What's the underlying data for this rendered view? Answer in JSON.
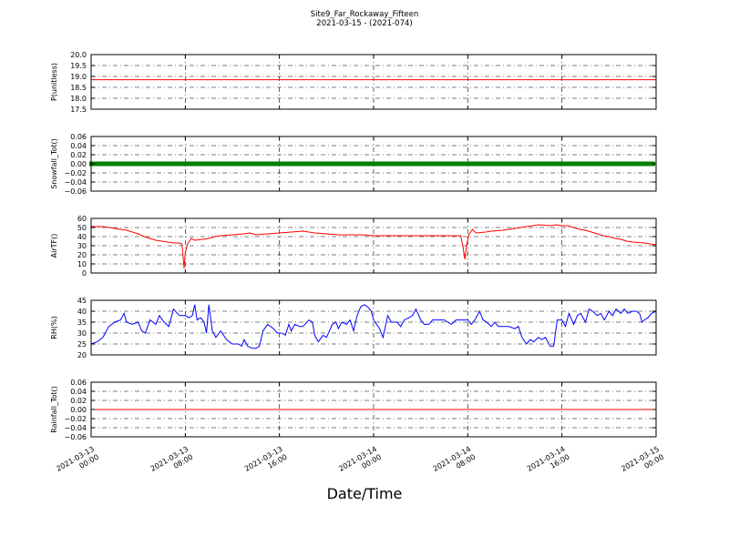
{
  "header": {
    "title": "Site9_Far_Rockaway_Fifteen",
    "subtitle": "2021-03-15 - (2021-074)"
  },
  "xlabel": "Date/Time",
  "chart_data": [
    {
      "type": "line",
      "ylabel": "P(unitless)",
      "ylim": [
        17.5,
        20.0
      ],
      "yticks": [
        "17.5",
        "18.0",
        "18.5",
        "19.0",
        "19.5",
        "20.0"
      ],
      "ytick_values": [
        17.5,
        18.0,
        18.5,
        19.0,
        19.5,
        20.0
      ],
      "color": "#ff0000",
      "marker": "none",
      "series_points": [
        [
          0,
          18.85
        ],
        [
          48,
          18.85
        ]
      ]
    },
    {
      "type": "line",
      "ylabel": "Snowfall_Tot()",
      "ylim": [
        -0.06,
        0.06
      ],
      "yticks": [
        "−0.06",
        "−0.04",
        "−0.02",
        "0.00",
        "0.02",
        "0.04",
        "0.06"
      ],
      "ytick_values": [
        -0.06,
        -0.04,
        -0.02,
        0.0,
        0.02,
        0.04,
        0.06
      ],
      "color": "#008000",
      "marker": "square",
      "series_points": [
        [
          0,
          0.0
        ],
        [
          48,
          0.0
        ]
      ]
    },
    {
      "type": "line",
      "ylabel": "AirTF()",
      "ylim": [
        0,
        60
      ],
      "yticks": [
        "0",
        "10",
        "20",
        "30",
        "40",
        "50",
        "60"
      ],
      "ytick_values": [
        0,
        10,
        20,
        30,
        40,
        50,
        60
      ],
      "color": "#ff0000",
      "marker": "none",
      "series_points": [
        [
          0,
          51
        ],
        [
          1,
          51
        ],
        [
          2,
          49
        ],
        [
          2.5,
          48
        ],
        [
          3,
          47
        ],
        [
          3.5,
          45
        ],
        [
          4,
          43
        ],
        [
          4.5,
          40
        ],
        [
          5,
          38
        ],
        [
          5.5,
          36
        ],
        [
          6,
          35
        ],
        [
          6.5,
          34
        ],
        [
          7,
          33
        ],
        [
          7.5,
          33
        ],
        [
          7.7,
          32
        ],
        [
          7.8,
          20
        ],
        [
          7.9,
          5
        ],
        [
          8.0,
          22
        ],
        [
          8.2,
          32
        ],
        [
          8.5,
          38
        ],
        [
          8.8,
          36
        ],
        [
          9.5,
          37
        ],
        [
          10,
          38
        ],
        [
          10.5,
          40
        ],
        [
          11,
          41
        ],
        [
          12,
          42
        ],
        [
          13,
          43
        ],
        [
          13.5,
          44
        ],
        [
          14,
          42
        ],
        [
          15,
          43
        ],
        [
          16,
          44
        ],
        [
          17,
          45
        ],
        [
          18,
          46
        ],
        [
          18.5,
          45
        ],
        [
          19,
          44
        ],
        [
          20,
          43
        ],
        [
          21,
          42
        ],
        [
          22,
          42
        ],
        [
          23,
          42
        ],
        [
          24,
          41
        ],
        [
          25,
          41
        ],
        [
          26,
          41
        ],
        [
          30,
          41
        ],
        [
          31.4,
          41
        ],
        [
          31.6,
          28
        ],
        [
          31.75,
          15
        ],
        [
          31.9,
          30
        ],
        [
          32.1,
          42
        ],
        [
          32.4,
          48
        ],
        [
          32.7,
          44
        ],
        [
          33.5,
          45
        ],
        [
          34,
          46
        ],
        [
          35,
          47
        ],
        [
          36,
          49
        ],
        [
          37,
          51
        ],
        [
          38,
          53
        ],
        [
          39,
          52
        ],
        [
          39.5,
          53
        ],
        [
          40,
          52
        ],
        [
          40.5,
          52
        ],
        [
          41,
          50
        ],
        [
          41.5,
          48
        ],
        [
          42,
          47
        ],
        [
          42.5,
          45
        ],
        [
          43,
          43
        ],
        [
          43.5,
          41
        ],
        [
          44,
          40
        ],
        [
          44.5,
          38
        ],
        [
          45,
          37
        ],
        [
          45.5,
          35
        ],
        [
          46,
          34
        ],
        [
          47,
          33
        ],
        [
          48,
          31
        ]
      ]
    },
    {
      "type": "line",
      "ylabel": "RH(%)",
      "ylim": [
        20,
        45
      ],
      "yticks": [
        "20",
        "25",
        "30",
        "35",
        "40",
        "45"
      ],
      "ytick_values": [
        20,
        25,
        30,
        35,
        40,
        45
      ],
      "color": "#0000ff",
      "marker": "none",
      "series_points": [
        [
          0,
          25
        ],
        [
          0.5,
          26
        ],
        [
          1,
          28
        ],
        [
          1.5,
          33
        ],
        [
          2,
          35
        ],
        [
          2.5,
          36
        ],
        [
          2.8,
          39
        ],
        [
          3,
          35
        ],
        [
          3.5,
          34
        ],
        [
          4,
          35
        ],
        [
          4.3,
          31
        ],
        [
          4.6,
          30
        ],
        [
          5,
          36
        ],
        [
          5.5,
          34
        ],
        [
          5.8,
          38
        ],
        [
          6.2,
          35
        ],
        [
          6.6,
          33
        ],
        [
          7,
          41
        ],
        [
          7.5,
          38
        ],
        [
          8,
          38
        ],
        [
          8.3,
          37
        ],
        [
          8.6,
          38
        ],
        [
          8.8,
          43
        ],
        [
          9,
          36
        ],
        [
          9.3,
          37
        ],
        [
          9.6,
          35
        ],
        [
          9.8,
          30
        ],
        [
          10,
          43
        ],
        [
          10.3,
          31
        ],
        [
          10.6,
          28
        ],
        [
          11,
          31
        ],
        [
          11.5,
          27
        ],
        [
          12,
          25
        ],
        [
          12.5,
          25
        ],
        [
          12.8,
          24
        ],
        [
          13,
          27
        ],
        [
          13.3,
          24
        ],
        [
          13.7,
          23
        ],
        [
          14,
          23
        ],
        [
          14.3,
          24
        ],
        [
          14.6,
          31
        ],
        [
          15,
          34
        ],
        [
          15.5,
          32
        ],
        [
          15.8,
          30
        ],
        [
          16.2,
          30
        ],
        [
          16.5,
          29
        ],
        [
          16.8,
          34
        ],
        [
          17,
          31
        ],
        [
          17.3,
          34
        ],
        [
          17.7,
          33
        ],
        [
          18,
          33
        ],
        [
          18.5,
          36
        ],
        [
          18.8,
          35
        ],
        [
          19,
          29
        ],
        [
          19.3,
          26
        ],
        [
          19.7,
          29
        ],
        [
          20,
          28
        ],
        [
          20.5,
          34
        ],
        [
          20.8,
          35
        ],
        [
          21,
          32
        ],
        [
          21.3,
          35
        ],
        [
          21.7,
          34
        ],
        [
          22,
          36
        ],
        [
          22.3,
          31
        ],
        [
          22.6,
          38
        ],
        [
          22.9,
          42
        ],
        [
          23.2,
          43
        ],
        [
          23.5,
          42
        ],
        [
          23.8,
          40
        ],
        [
          24,
          36
        ],
        [
          24.5,
          32
        ],
        [
          24.8,
          28
        ],
        [
          25.2,
          38
        ],
        [
          25.5,
          35
        ],
        [
          26,
          35
        ],
        [
          26.3,
          33
        ],
        [
          26.6,
          36
        ],
        [
          27,
          37
        ],
        [
          27.3,
          38
        ],
        [
          27.6,
          41
        ],
        [
          28,
          36
        ],
        [
          28.3,
          34
        ],
        [
          28.7,
          34
        ],
        [
          29,
          36
        ],
        [
          29.5,
          36
        ],
        [
          30,
          36
        ],
        [
          30.3,
          35
        ],
        [
          30.6,
          34
        ],
        [
          31,
          36
        ],
        [
          31.5,
          36
        ],
        [
          32,
          36
        ],
        [
          32.3,
          34
        ],
        [
          32.6,
          36
        ],
        [
          33,
          40
        ],
        [
          33.3,
          36
        ],
        [
          33.6,
          35
        ],
        [
          34,
          33
        ],
        [
          34.3,
          35
        ],
        [
          34.6,
          33
        ],
        [
          35,
          33
        ],
        [
          35.5,
          33
        ],
        [
          36,
          32
        ],
        [
          36.3,
          33
        ],
        [
          36.6,
          28
        ],
        [
          37,
          25
        ],
        [
          37.3,
          27
        ],
        [
          37.6,
          26
        ],
        [
          38,
          28
        ],
        [
          38.3,
          27
        ],
        [
          38.6,
          28
        ],
        [
          39,
          24
        ],
        [
          39.3,
          24
        ],
        [
          39.6,
          36
        ],
        [
          40,
          36
        ],
        [
          40.3,
          33
        ],
        [
          40.6,
          39
        ],
        [
          41,
          34
        ],
        [
          41.3,
          38
        ],
        [
          41.6,
          39
        ],
        [
          42,
          35
        ],
        [
          42.3,
          41
        ],
        [
          42.6,
          40
        ],
        [
          43,
          38
        ],
        [
          43.3,
          39
        ],
        [
          43.6,
          36
        ],
        [
          44,
          40
        ],
        [
          44.3,
          38
        ],
        [
          44.6,
          41
        ],
        [
          45,
          39
        ],
        [
          45.3,
          41
        ],
        [
          45.6,
          39
        ],
        [
          46,
          40
        ],
        [
          46.3,
          40
        ],
        [
          46.6,
          39
        ],
        [
          46.8,
          35
        ],
        [
          47,
          36
        ],
        [
          47.3,
          37
        ],
        [
          47.6,
          39
        ],
        [
          48,
          40
        ]
      ]
    },
    {
      "type": "line",
      "ylabel": "Rainfall_Tot()",
      "ylim": [
        -0.06,
        0.06
      ],
      "yticks": [
        "−0.06",
        "−0.04",
        "−0.02",
        "0.00",
        "0.02",
        "0.04",
        "0.06"
      ],
      "ytick_values": [
        -0.06,
        -0.04,
        -0.02,
        0.0,
        0.02,
        0.04,
        0.06
      ],
      "color": "#ff0000",
      "marker": "none",
      "series_points": [
        [
          0,
          0.0
        ],
        [
          48,
          0.0
        ]
      ]
    }
  ],
  "x_axis": {
    "unit": "hours since 2021-03-13 00:00",
    "range": [
      0,
      48
    ],
    "tick_values": [
      0,
      8,
      16,
      24,
      32,
      40,
      48
    ],
    "tick_labels": [
      [
        "2021-03-13",
        "00:00"
      ],
      [
        "2021-03-13",
        "08:00"
      ],
      [
        "2021-03-13",
        "16:00"
      ],
      [
        "2021-03-14",
        "00:00"
      ],
      [
        "2021-03-14",
        "08:00"
      ],
      [
        "2021-03-14",
        "16:00"
      ],
      [
        "2021-03-15",
        "00:00"
      ]
    ]
  }
}
